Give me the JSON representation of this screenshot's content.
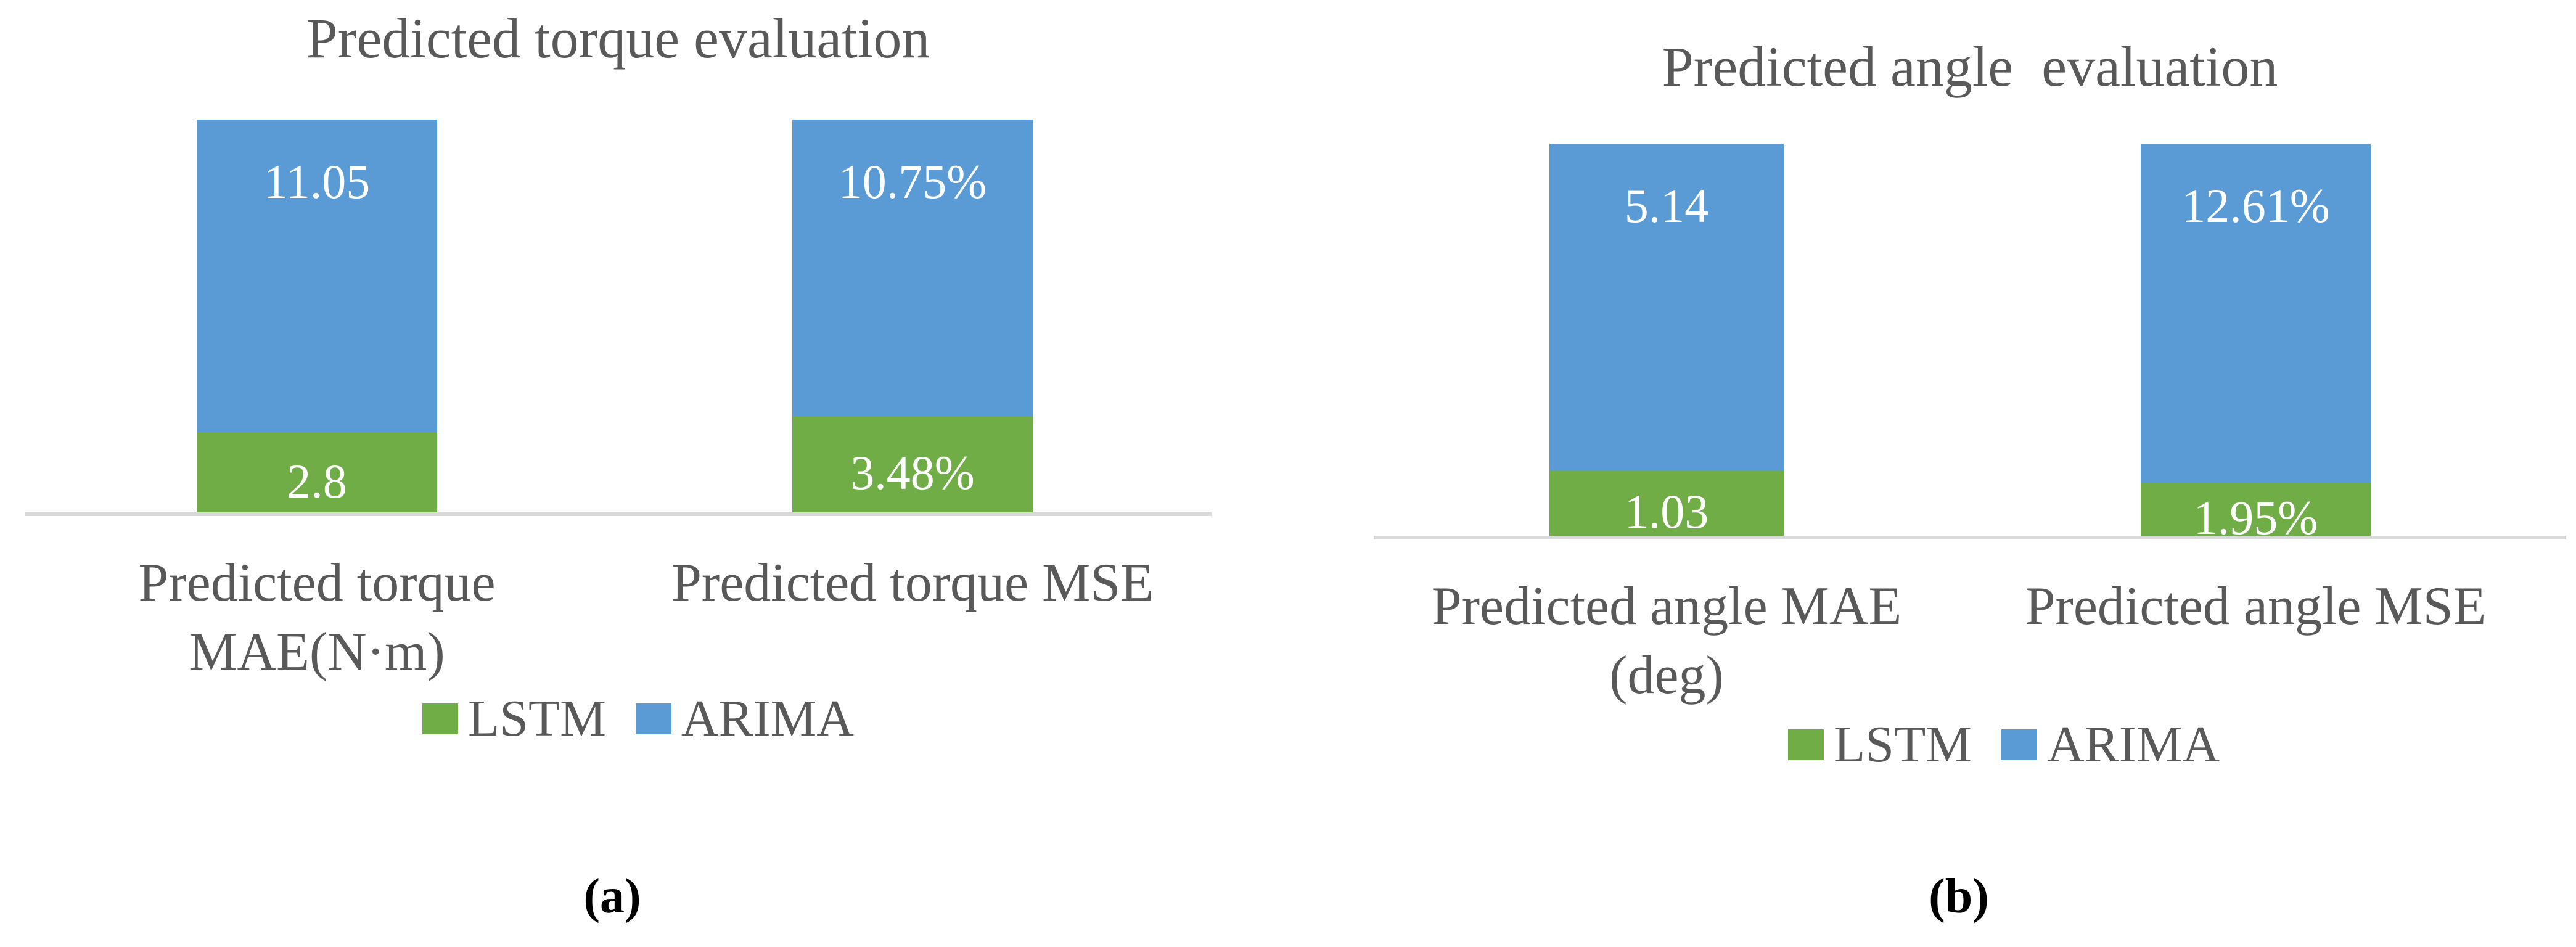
{
  "figure": {
    "background": "#FFFFFF",
    "text_color": "#595959",
    "axis_line_color": "#D9D9D9",
    "data_label_color": "#FFFFFF"
  },
  "chart_data": [
    {
      "type": "bar",
      "subtype": "stacked-column (two segments per column, columns fill full plot height; LSTM segment at bottom, ARIMA on top)",
      "title": "Predicted torque evaluation",
      "panel_label": "(a)",
      "categories": [
        "Predicted torque MAE(N·m)",
        "Predicted torque MSE"
      ],
      "category_label_lines": [
        [
          "Predicted torque",
          "MAE(N·m)"
        ],
        [
          "Predicted torque MSE"
        ]
      ],
      "series": [
        {
          "name": "LSTM",
          "color": "#70AD47",
          "values": [
            2.8,
            3.48
          ],
          "data_labels": [
            "2.8",
            "3.48%"
          ]
        },
        {
          "name": "ARIMA",
          "color": "#5B9BD5",
          "values": [
            11.05,
            10.75
          ],
          "data_labels": [
            "11.05",
            "10.75%"
          ]
        }
      ],
      "legend": {
        "position": "bottom",
        "entries": [
          "LSTM",
          "ARIMA"
        ]
      },
      "gridlines": false,
      "y_axis": "hidden",
      "x_axis_line": true
    },
    {
      "type": "bar",
      "subtype": "stacked-column (two segments per column, columns fill full plot height; LSTM segment at bottom, ARIMA on top)",
      "title": "Predicted angle  evaluation",
      "panel_label": "(b)",
      "categories": [
        "Predicted angle MAE (deg)",
        "Predicted angle MSE"
      ],
      "category_label_lines": [
        [
          "Predicted angle MAE",
          "(deg)"
        ],
        [
          "Predicted angle MSE"
        ]
      ],
      "series": [
        {
          "name": "LSTM",
          "color": "#70AD47",
          "values": [
            1.03,
            1.95
          ],
          "data_labels": [
            "1.03",
            "1.95%"
          ]
        },
        {
          "name": "ARIMA",
          "color": "#5B9BD5",
          "values": [
            5.14,
            12.61
          ],
          "data_labels": [
            "5.14",
            "12.61%"
          ]
        }
      ],
      "legend": {
        "position": "bottom",
        "entries": [
          "LSTM",
          "ARIMA"
        ]
      },
      "gridlines": false,
      "y_axis": "hidden",
      "x_axis_line": true
    }
  ]
}
